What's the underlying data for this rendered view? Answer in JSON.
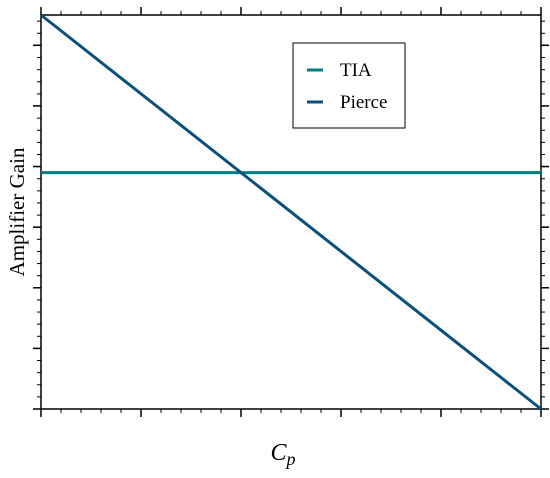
{
  "chart_data": {
    "type": "line",
    "title": "",
    "xlabel": "C",
    "xlabel_subscript": "p",
    "ylabel": "Amplifier Gain",
    "xlim": [
      0,
      1
    ],
    "ylim": [
      0,
      1
    ],
    "grid": false,
    "legend_position": "top-right",
    "x_ticks": {
      "major": [
        0,
        0.2,
        0.4,
        0.6,
        0.8,
        1.0
      ],
      "minor_per_major": 4
    },
    "y_ticks": {
      "major": [
        0,
        0.1538,
        0.3077,
        0.4615,
        0.6154,
        0.7692,
        0.9231
      ],
      "minor_per_major": 4
    },
    "series": [
      {
        "name": "TIA",
        "color": "#008080",
        "x": [
          0,
          1
        ],
        "y": [
          0.6,
          0.6
        ]
      },
      {
        "name": "Pierce",
        "color": "#0b4f7c",
        "x": [
          0,
          1
        ],
        "y": [
          1.0,
          0.0
        ]
      }
    ]
  }
}
